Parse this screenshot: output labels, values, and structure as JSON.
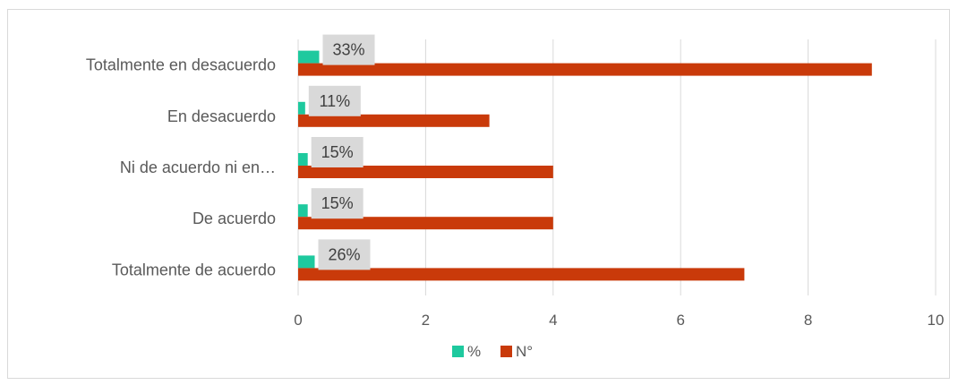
{
  "chart_data": {
    "type": "bar",
    "orientation": "horizontal",
    "categories": [
      "Totalmente en desacuerdo",
      "En desacuerdo",
      "Ni de acuerdo ni en…",
      "De acuerdo",
      "Totalmente de acuerdo"
    ],
    "series": [
      {
        "name": "%",
        "values": [
          0.33,
          0.11,
          0.15,
          0.15,
          0.26
        ],
        "color": "#1ec99e",
        "labels": [
          "33%",
          "11%",
          "15%",
          "15%",
          "26%"
        ]
      },
      {
        "name": "N°",
        "values": [
          9,
          3,
          4,
          4,
          7
        ],
        "color": "#c93a0a"
      }
    ],
    "xlim": [
      0,
      10
    ],
    "xticks": [
      "0",
      "2",
      "4",
      "6",
      "8",
      "10"
    ],
    "grid": true,
    "legend": "bottom",
    "title": "",
    "xlabel": "",
    "ylabel": ""
  }
}
